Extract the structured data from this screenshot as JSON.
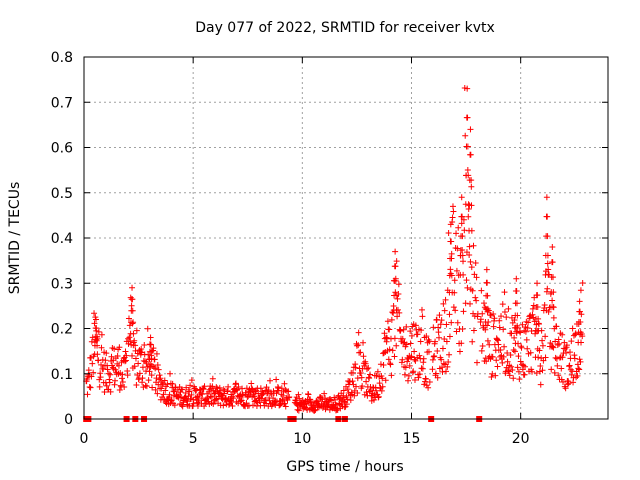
{
  "chart_data": {
    "type": "scatter",
    "title": "Day 077 of 2022, SRMTID for receiver kvtx",
    "xlabel": "GPS time / hours",
    "ylabel": "SRMTID / TECUs",
    "xlim": [
      0,
      24
    ],
    "ylim": [
      0,
      0.8
    ],
    "xticks": [
      0,
      5,
      10,
      15,
      20
    ],
    "xtick_labels": [
      "0",
      "5",
      "10",
      "15",
      "20"
    ],
    "yticks": [
      0,
      0.1,
      0.2,
      0.3,
      0.4,
      0.5,
      0.6,
      0.7,
      0.8
    ],
    "ytick_labels": [
      "0",
      "0.1",
      "0.2",
      "0.3",
      "0.4",
      "0.5",
      "0.6",
      "0.7",
      "0.8"
    ],
    "grid": true,
    "marker": "+",
    "color": "#ff0000",
    "series": [
      {
        "name": "SRMTID",
        "trend": [
          [
            0.05,
            0.07
          ],
          [
            0.2,
            0.08
          ],
          [
            0.35,
            0.12
          ],
          [
            0.5,
            0.18
          ],
          [
            0.7,
            0.13
          ],
          [
            1.0,
            0.1
          ],
          [
            1.3,
            0.11
          ],
          [
            1.6,
            0.12
          ],
          [
            1.85,
            0.09
          ],
          [
            2.1,
            0.22
          ],
          [
            2.25,
            0.12
          ],
          [
            2.6,
            0.12
          ],
          [
            2.9,
            0.11
          ],
          [
            3.1,
            0.12
          ],
          [
            3.4,
            0.08
          ],
          [
            3.8,
            0.06
          ],
          [
            4.3,
            0.05
          ],
          [
            5.0,
            0.05
          ],
          [
            6.0,
            0.05
          ],
          [
            7.0,
            0.05
          ],
          [
            8.0,
            0.05
          ],
          [
            9.0,
            0.05
          ],
          [
            9.5,
            0.04
          ],
          [
            10.0,
            0.03
          ],
          [
            11.0,
            0.035
          ],
          [
            11.5,
            0.03
          ],
          [
            12.0,
            0.05
          ],
          [
            12.3,
            0.08
          ],
          [
            12.6,
            0.11
          ],
          [
            12.9,
            0.09
          ],
          [
            13.2,
            0.06
          ],
          [
            13.5,
            0.08
          ],
          [
            13.8,
            0.15
          ],
          [
            14.1,
            0.17
          ],
          [
            14.3,
            0.25
          ],
          [
            14.6,
            0.14
          ],
          [
            15.0,
            0.16
          ],
          [
            15.4,
            0.15
          ],
          [
            15.8,
            0.12
          ],
          [
            16.2,
            0.16
          ],
          [
            16.6,
            0.19
          ],
          [
            16.9,
            0.33
          ],
          [
            17.2,
            0.24
          ],
          [
            17.5,
            0.45
          ],
          [
            17.8,
            0.29
          ],
          [
            18.0,
            0.22
          ],
          [
            18.3,
            0.2
          ],
          [
            18.7,
            0.16
          ],
          [
            19.0,
            0.18
          ],
          [
            19.4,
            0.17
          ],
          [
            19.8,
            0.16
          ],
          [
            20.2,
            0.15
          ],
          [
            20.6,
            0.19
          ],
          [
            20.9,
            0.13
          ],
          [
            21.2,
            0.25
          ],
          [
            21.5,
            0.17
          ],
          [
            21.8,
            0.14
          ],
          [
            22.2,
            0.11
          ],
          [
            22.5,
            0.15
          ],
          [
            22.8,
            0.21
          ]
        ],
        "peaks": [
          [
            0.55,
            0.22
          ],
          [
            2.2,
            0.29
          ],
          [
            3.05,
            0.18
          ],
          [
            14.25,
            0.37
          ],
          [
            16.8,
            0.43
          ],
          [
            17.3,
            0.49
          ],
          [
            17.55,
            0.73
          ],
          [
            17.7,
            0.64
          ],
          [
            18.45,
            0.33
          ],
          [
            19.8,
            0.31
          ],
          [
            20.75,
            0.3
          ],
          [
            21.2,
            0.49
          ],
          [
            21.45,
            0.38
          ],
          [
            22.7,
            0.26
          ]
        ]
      }
    ],
    "zero_markers_x": [
      0.1,
      0.2,
      1.95,
      2.35,
      2.75,
      9.45,
      9.6,
      11.65,
      11.95,
      15.9,
      18.1
    ]
  }
}
